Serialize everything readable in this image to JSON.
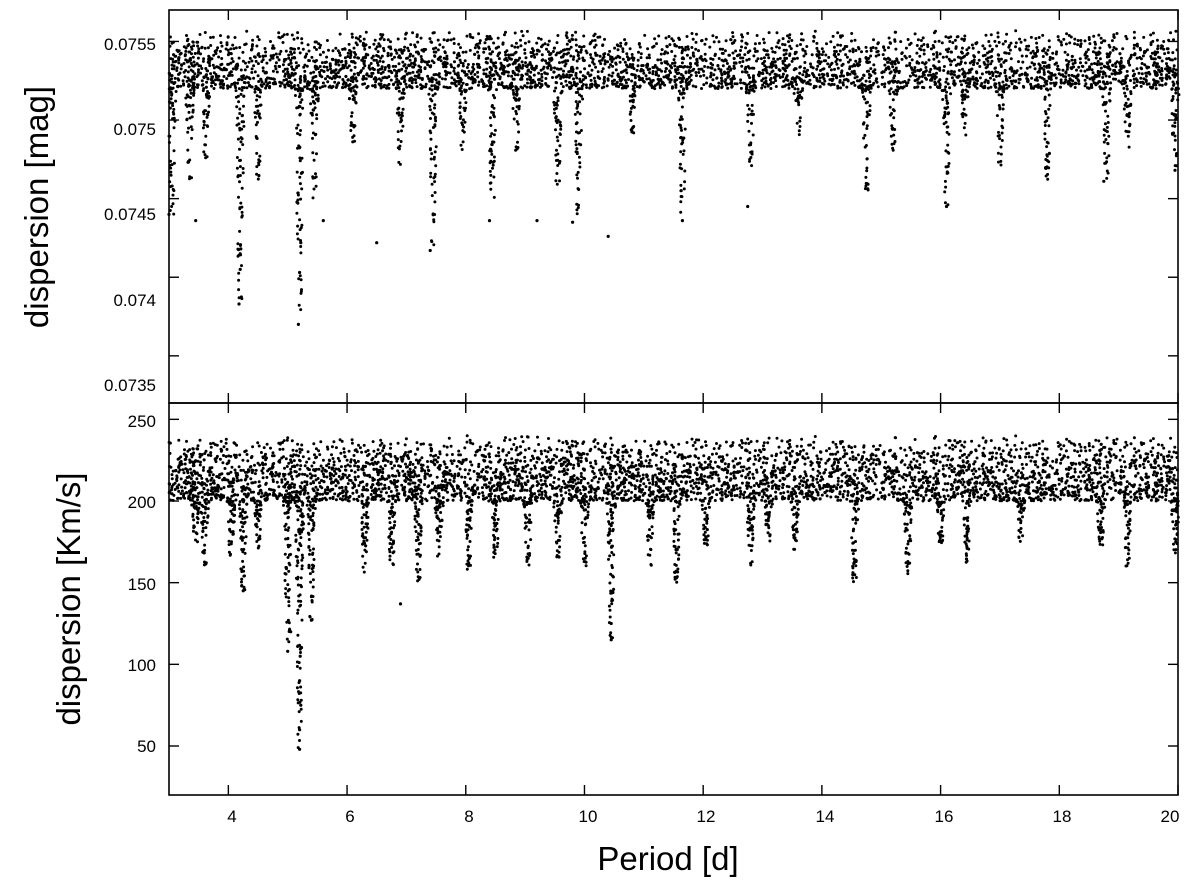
{
  "chart_data": [
    {
      "type": "scatter",
      "panel": "top",
      "ylabel": "dispersion [mag]",
      "xlabel": "",
      "xlim": [
        3,
        20
      ],
      "ylim": [
        0.0732,
        0.0757
      ],
      "yticks": [
        0.0735,
        0.074,
        0.0745,
        0.075,
        0.0755
      ],
      "ytick_labels": [
        "0.0735",
        "0.074",
        "0.0745",
        "0.075",
        "0.0755"
      ],
      "xticks": [
        4,
        6,
        8,
        10,
        12,
        14,
        16,
        18,
        20
      ],
      "grid": false,
      "baseline_band": [
        0.0752,
        0.07557
      ],
      "description_points": [
        {
          "x": 4.18,
          "y": 0.07383
        },
        {
          "x": 4.2,
          "y": 0.07405
        },
        {
          "x": 4.21,
          "y": 0.07418
        },
        {
          "x": 5.18,
          "y": 0.0737
        },
        {
          "x": 5.2,
          "y": 0.07403
        },
        {
          "x": 5.22,
          "y": 0.07422
        },
        {
          "x": 3.0,
          "y": 0.0744
        },
        {
          "x": 3.45,
          "y": 0.07436
        },
        {
          "x": 5.6,
          "y": 0.07436
        },
        {
          "x": 6.5,
          "y": 0.07422
        },
        {
          "x": 7.4,
          "y": 0.07417
        },
        {
          "x": 8.4,
          "y": 0.07436
        },
        {
          "x": 9.2,
          "y": 0.07436
        },
        {
          "x": 9.8,
          "y": 0.07435
        },
        {
          "x": 10.4,
          "y": 0.07426
        },
        {
          "x": 11.65,
          "y": 0.07436
        },
        {
          "x": 12.75,
          "y": 0.07445
        },
        {
          "x": 16.1,
          "y": 0.07445
        },
        {
          "x": 18.75,
          "y": 0.07461
        },
        {
          "x": 19.95,
          "y": 0.07468
        }
      ],
      "dips": [
        {
          "x": 3.05,
          "min": 0.0744
        },
        {
          "x": 3.35,
          "min": 0.0746
        },
        {
          "x": 3.62,
          "min": 0.07475
        },
        {
          "x": 4.2,
          "min": 0.0738
        },
        {
          "x": 4.5,
          "min": 0.0746
        },
        {
          "x": 5.2,
          "min": 0.0737
        },
        {
          "x": 5.45,
          "min": 0.0745
        },
        {
          "x": 6.1,
          "min": 0.0748
        },
        {
          "x": 6.9,
          "min": 0.0747
        },
        {
          "x": 7.45,
          "min": 0.0742
        },
        {
          "x": 7.95,
          "min": 0.0748
        },
        {
          "x": 8.45,
          "min": 0.0744
        },
        {
          "x": 8.85,
          "min": 0.0748
        },
        {
          "x": 9.55,
          "min": 0.0745
        },
        {
          "x": 9.9,
          "min": 0.0744
        },
        {
          "x": 10.8,
          "min": 0.0749
        },
        {
          "x": 11.65,
          "min": 0.0744
        },
        {
          "x": 12.8,
          "min": 0.0747
        },
        {
          "x": 13.6,
          "min": 0.0749
        },
        {
          "x": 14.75,
          "min": 0.07455
        },
        {
          "x": 15.2,
          "min": 0.0748
        },
        {
          "x": 16.1,
          "min": 0.07445
        },
        {
          "x": 16.4,
          "min": 0.0749
        },
        {
          "x": 17.0,
          "min": 0.0747
        },
        {
          "x": 17.8,
          "min": 0.07462
        },
        {
          "x": 18.8,
          "min": 0.0746
        },
        {
          "x": 19.15,
          "min": 0.0748
        },
        {
          "x": 19.95,
          "min": 0.0747
        }
      ]
    },
    {
      "type": "scatter",
      "panel": "bottom",
      "ylabel": "dispersion [Km/s]",
      "xlabel": "Period [d]",
      "xlim": [
        3,
        20
      ],
      "ylim": [
        20,
        260
      ],
      "yticks": [
        50,
        100,
        150,
        200,
        250
      ],
      "ytick_labels": [
        "50",
        "100",
        "150",
        "200",
        "250"
      ],
      "xticks": [
        4,
        6,
        8,
        10,
        12,
        14,
        16,
        18,
        20
      ],
      "xtick_labels": [
        "4",
        "6",
        "8",
        "10",
        "12",
        "14",
        "16",
        "18",
        "20"
      ],
      "grid": false,
      "baseline_band": [
        200,
        240
      ],
      "description_points": [
        {
          "x": 5.2,
          "y": 48
        },
        {
          "x": 5.2,
          "y": 60
        },
        {
          "x": 5.22,
          "y": 75
        },
        {
          "x": 5.2,
          "y": 90
        },
        {
          "x": 5.21,
          "y": 105
        },
        {
          "x": 5.0,
          "y": 108
        },
        {
          "x": 5.05,
          "y": 120
        },
        {
          "x": 5.4,
          "y": 127
        },
        {
          "x": 6.9,
          "y": 137
        },
        {
          "x": 10.45,
          "y": 115
        },
        {
          "x": 10.45,
          "y": 125
        },
        {
          "x": 4.25,
          "y": 145
        }
      ],
      "dips": [
        {
          "x": 3.45,
          "min": 175
        },
        {
          "x": 3.6,
          "min": 160
        },
        {
          "x": 4.05,
          "min": 165
        },
        {
          "x": 4.25,
          "min": 143
        },
        {
          "x": 4.5,
          "min": 170
        },
        {
          "x": 5.0,
          "min": 108
        },
        {
          "x": 5.2,
          "min": 48
        },
        {
          "x": 5.4,
          "min": 127
        },
        {
          "x": 6.3,
          "min": 155
        },
        {
          "x": 6.75,
          "min": 155
        },
        {
          "x": 7.2,
          "min": 150
        },
        {
          "x": 7.55,
          "min": 165
        },
        {
          "x": 8.05,
          "min": 158
        },
        {
          "x": 8.5,
          "min": 165
        },
        {
          "x": 9.05,
          "min": 160
        },
        {
          "x": 9.55,
          "min": 165
        },
        {
          "x": 10.0,
          "min": 160
        },
        {
          "x": 10.45,
          "min": 115
        },
        {
          "x": 11.1,
          "min": 160
        },
        {
          "x": 11.55,
          "min": 150
        },
        {
          "x": 12.05,
          "min": 170
        },
        {
          "x": 12.8,
          "min": 160
        },
        {
          "x": 13.1,
          "min": 175
        },
        {
          "x": 13.55,
          "min": 170
        },
        {
          "x": 14.55,
          "min": 150
        },
        {
          "x": 15.45,
          "min": 155
        },
        {
          "x": 16.0,
          "min": 172
        },
        {
          "x": 16.45,
          "min": 162
        },
        {
          "x": 17.35,
          "min": 175
        },
        {
          "x": 18.7,
          "min": 170
        },
        {
          "x": 19.15,
          "min": 160
        },
        {
          "x": 19.95,
          "min": 165
        }
      ]
    }
  ]
}
